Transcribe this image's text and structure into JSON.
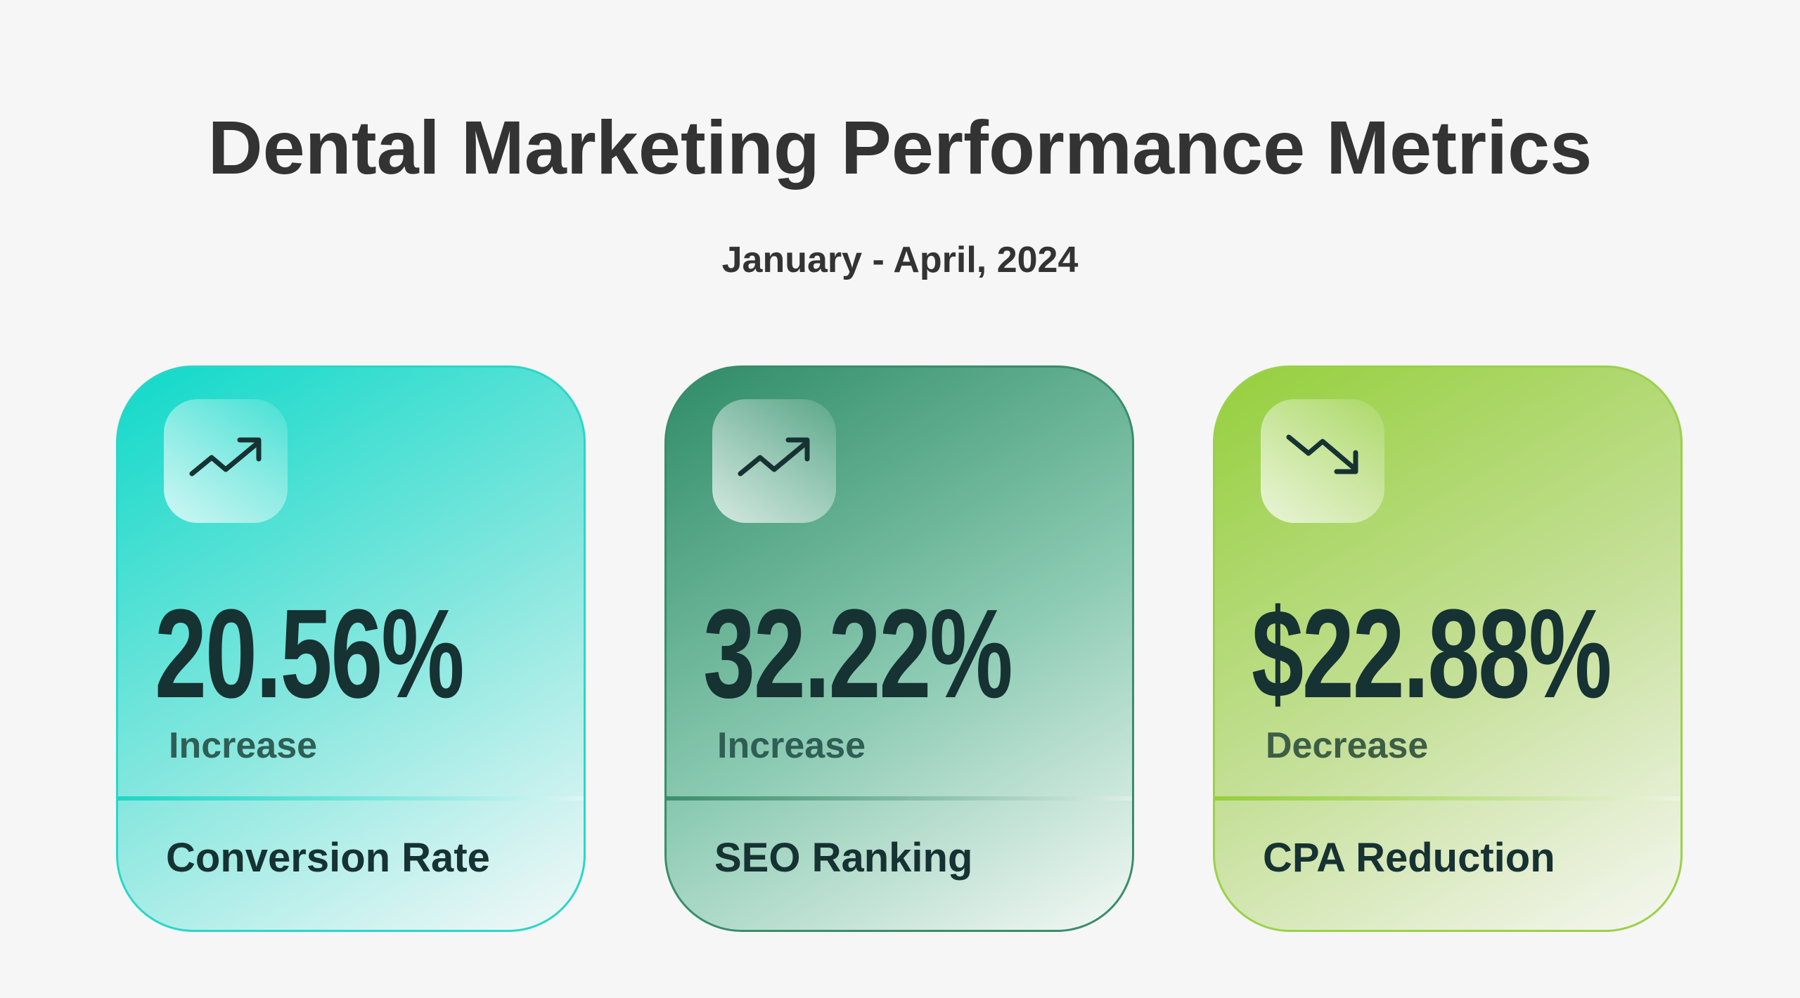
{
  "header": {
    "title": "Dental Marketing Performance Metrics",
    "subtitle": "January - April, 2024"
  },
  "cards": [
    {
      "icon": "trending-up-icon",
      "value": "20.56%",
      "change": "Increase",
      "label": "Conversion Rate",
      "color": "#0fd9c9"
    },
    {
      "icon": "trending-up-icon",
      "value": "32.22%",
      "change": "Increase",
      "label": "SEO Ranking",
      "color": "#2e8b67"
    },
    {
      "icon": "trending-down-icon",
      "value": "$22.88%",
      "change": "Decrease",
      "label": "CPA Reduction",
      "color": "#9acd3f"
    }
  ]
}
